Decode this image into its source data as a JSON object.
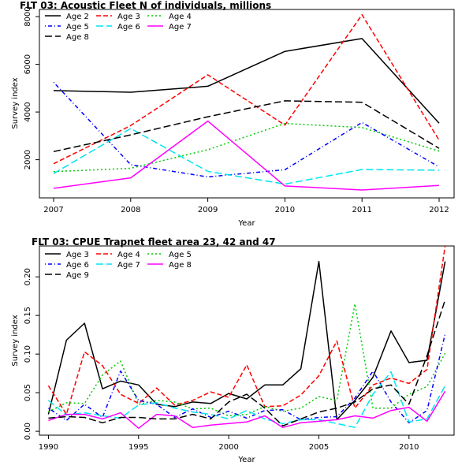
{
  "chart_data": [
    {
      "type": "line",
      "title": "FLT 03: Acoustic Fleet   N of individuals, millions",
      "xlabel": "Year",
      "ylabel": "Survey index",
      "x": [
        2007,
        2008,
        2009,
        2010,
        2011,
        2012
      ],
      "x_ticks": [
        "2007",
        "2008",
        "2009",
        "2010",
        "2011",
        "2012"
      ],
      "y_ticks": [
        "2000",
        "4000",
        "6000",
        "8000"
      ],
      "xlim": [
        2007,
        2012
      ],
      "ylim": [
        400,
        8300
      ],
      "legend_position": "top-left",
      "series": [
        {
          "name": "Age 2",
          "color": "#000000",
          "dash": "solid",
          "values": [
            4900,
            4830,
            5080,
            6540,
            7080,
            3530
          ]
        },
        {
          "name": "Age 3",
          "color": "#ff0000",
          "dash": "dashed",
          "values": [
            1830,
            3430,
            5560,
            3450,
            8080,
            2820
          ]
        },
        {
          "name": "Age 4",
          "color": "#00cc00",
          "dash": "dotted",
          "values": [
            1500,
            1640,
            2420,
            3520,
            3350,
            2360
          ]
        },
        {
          "name": "Age 5",
          "color": "#0000ff",
          "dash": "dotdash",
          "values": [
            5250,
            1790,
            1280,
            1580,
            3560,
            1700
          ]
        },
        {
          "name": "Age 6",
          "color": "#00e5ee",
          "dash": "longdash",
          "values": [
            1420,
            3310,
            1510,
            980,
            1590,
            1560
          ]
        },
        {
          "name": "Age 7",
          "color": "#ff00ff",
          "dash": "solid",
          "values": [
            800,
            1240,
            3620,
            900,
            730,
            920
          ]
        },
        {
          "name": "Age 8",
          "color": "#000000",
          "dash": "longdash",
          "values": [
            2340,
            3040,
            3800,
            4470,
            4410,
            2480
          ]
        }
      ]
    },
    {
      "type": "line",
      "title": "FLT 03: CPUE Trapnet fleet area 23, 42 and 47",
      "xlabel": "Year",
      "ylabel": "Survey index",
      "x": [
        1990,
        1991,
        1992,
        1993,
        1994,
        1995,
        1996,
        1997,
        1998,
        1999,
        2000,
        2001,
        2002,
        2003,
        2004,
        2005,
        2006,
        2007,
        2008,
        2009,
        2010,
        2011,
        2012
      ],
      "x_ticks": [
        "1990",
        "1995",
        "2000",
        "2005",
        "2010"
      ],
      "x_tick_values": [
        1990,
        1995,
        2000,
        2005,
        2010
      ],
      "y_ticks": [
        "0.00",
        "0.05",
        "0.10",
        "0.15",
        "0.20"
      ],
      "xlim": [
        1989.5,
        2012.5
      ],
      "ylim": [
        -0.005,
        0.24
      ],
      "legend_position": "top-left",
      "series": [
        {
          "name": "Age 3",
          "color": "#000000",
          "dash": "solid",
          "values": [
            0.022,
            0.118,
            0.14,
            0.055,
            0.065,
            0.06,
            0.035,
            0.032,
            0.038,
            0.036,
            0.049,
            0.042,
            0.06,
            0.06,
            0.081,
            0.22,
            0.015,
            0.04,
            0.07,
            0.13,
            0.089,
            0.092,
            0.22
          ]
        },
        {
          "name": "Age 4",
          "color": "#ff0000",
          "dash": "dashed",
          "values": [
            0.059,
            0.022,
            0.103,
            0.085,
            0.048,
            0.036,
            0.056,
            0.034,
            0.04,
            0.051,
            0.044,
            0.086,
            0.032,
            0.033,
            0.047,
            0.072,
            0.117,
            0.03,
            0.06,
            0.069,
            0.062,
            0.08,
            0.24
          ]
        },
        {
          "name": "Age 5",
          "color": "#00cc00",
          "dash": "dotted",
          "values": [
            0.025,
            0.037,
            0.036,
            0.073,
            0.091,
            0.035,
            0.04,
            0.038,
            0.029,
            0.03,
            0.02,
            0.022,
            0.032,
            0.026,
            0.03,
            0.045,
            0.04,
            0.165,
            0.03,
            0.03,
            0.048,
            0.058,
            0.101
          ]
        },
        {
          "name": "Age 6",
          "color": "#0000ff",
          "dash": "dotdash",
          "values": [
            0.03,
            0.014,
            0.035,
            0.018,
            0.078,
            0.04,
            0.035,
            0.018,
            0.029,
            0.018,
            0.026,
            0.017,
            0.027,
            0.028,
            0.015,
            0.018,
            0.019,
            0.043,
            0.078,
            0.038,
            0.011,
            0.027,
            0.126
          ]
        },
        {
          "name": "Age 7",
          "color": "#00e5ee",
          "dash": "longdash",
          "values": [
            0.04,
            0.021,
            0.024,
            0.02,
            0.017,
            0.034,
            0.037,
            0.03,
            0.025,
            0.022,
            0.016,
            0.027,
            0.016,
            0.01,
            0.015,
            0.015,
            0.01,
            0.005,
            0.048,
            0.077,
            0.012,
            0.016,
            0.059
          ]
        },
        {
          "name": "Age 8",
          "color": "#ff00ff",
          "dash": "solid",
          "values": [
            0.014,
            0.022,
            0.022,
            0.016,
            0.024,
            0.004,
            0.022,
            0.02,
            0.005,
            0.008,
            0.01,
            0.012,
            0.02,
            0.005,
            0.011,
            0.013,
            0.015,
            0.02,
            0.017,
            0.027,
            0.031,
            0.013,
            0.052
          ]
        },
        {
          "name": "Age 9",
          "color": "#000000",
          "dash": "longdash",
          "values": [
            0.017,
            0.019,
            0.018,
            0.011,
            0.018,
            0.018,
            0.016,
            0.016,
            0.022,
            0.016,
            0.038,
            0.048,
            0.03,
            0.007,
            0.016,
            0.025,
            0.03,
            0.038,
            0.055,
            0.06,
            0.035,
            0.098,
            0.17
          ]
        }
      ]
    }
  ]
}
